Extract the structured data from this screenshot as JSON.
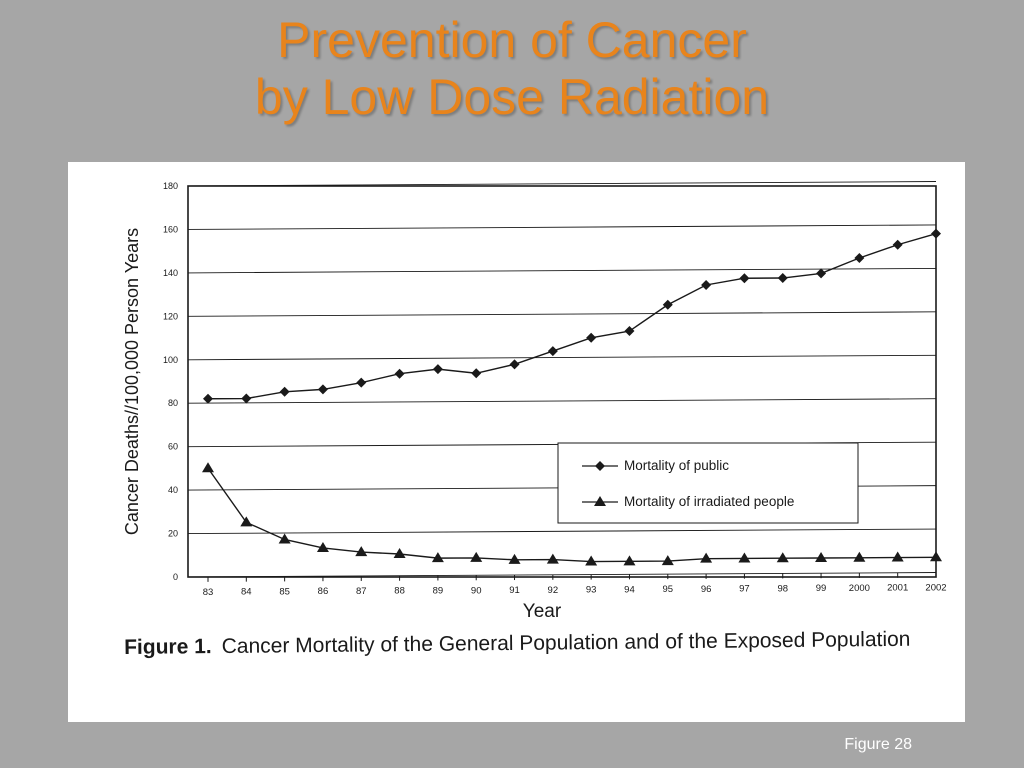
{
  "slide": {
    "title_line1": "Prevention of Cancer",
    "title_line2": "by Low Dose Radiation",
    "footer": "Figure 28"
  },
  "caption": {
    "label": "Figure 1.",
    "text": "Cancer Mortality of the General Population and of the Exposed Population"
  },
  "colors": {
    "background": "#a6a6a6",
    "title": "#e8841c",
    "ink": "#1a1a1a"
  },
  "chart_data": {
    "type": "line",
    "xlabel": "Year",
    "ylabel": "Cancer Deaths//100,000 Person Years",
    "ylim": [
      0,
      180
    ],
    "yticks": [
      0,
      20,
      40,
      60,
      80,
      100,
      120,
      140,
      160,
      180
    ],
    "grid": "horizontal",
    "legend_position": "center-right",
    "categories": [
      "83",
      "84",
      "85",
      "86",
      "87",
      "88",
      "89",
      "90",
      "91",
      "92",
      "93",
      "94",
      "95",
      "96",
      "97",
      "98",
      "99",
      "2000",
      "2001",
      "2002"
    ],
    "series": [
      {
        "name": "Mortality of public",
        "marker": "diamond",
        "values": [
          82,
          82,
          85,
          86,
          89,
          93,
          95,
          93,
          97,
          103,
          109,
          112,
          124,
          133,
          136,
          136,
          138,
          145,
          151,
          156
        ]
      },
      {
        "name": "Mortality of irradiated people",
        "marker": "triangle",
        "values": [
          50,
          25,
          17,
          13,
          11,
          10,
          8,
          8,
          7,
          7,
          6,
          6,
          6,
          7,
          7,
          7,
          7,
          7,
          7,
          7
        ]
      }
    ]
  }
}
